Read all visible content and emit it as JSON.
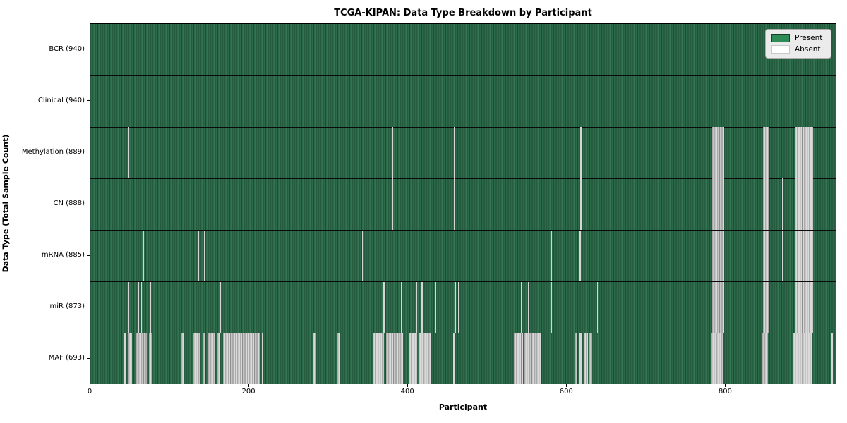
{
  "title": "TCGA-KIPAN: Data Type Breakdown by Participant",
  "axes": {
    "x_label": "Participant",
    "y_label": "Data Type (Total Sample Count)"
  },
  "legend": {
    "present_label": "Present",
    "absent_label": "Absent"
  },
  "colors": {
    "present": "#2e8b57",
    "present_dark": "#1d4d35",
    "present_light": "#3c7f5e",
    "absent": "#c6c6c6",
    "absent_light": "#ededed",
    "absent_dark": "#8d8d8d",
    "legend_bg": "#ebebeb",
    "frame": "#000000"
  },
  "chart_data": {
    "type": "heatmap",
    "title": "TCGA-KIPAN: Data Type Breakdown by Participant",
    "xlabel": "Participant",
    "ylabel": "Data Type (Total Sample Count)",
    "xlim": [
      0,
      940
    ],
    "x_ticks": [
      0,
      200,
      400,
      600,
      800
    ],
    "legend_entries": [
      "Present",
      "Absent"
    ],
    "value_encoding": {
      "present": "green",
      "absent": "white"
    },
    "rows": [
      {
        "label": "BCR (940)",
        "total_samples": 940,
        "absent_segments": [
          [
            325,
            326
          ]
        ]
      },
      {
        "label": "Clinical (940)",
        "total_samples": 940,
        "absent_segments": [
          [
            446,
            447
          ]
        ]
      },
      {
        "label": "Methylation (889)",
        "total_samples": 889,
        "absent_segments": [
          [
            48,
            49
          ],
          [
            331,
            332
          ],
          [
            380,
            381
          ],
          [
            458,
            459
          ],
          [
            617,
            618
          ],
          [
            783,
            798
          ],
          [
            847,
            854
          ],
          [
            887,
            910
          ]
        ]
      },
      {
        "label": "CN (888)",
        "total_samples": 888,
        "absent_segments": [
          [
            62,
            63
          ],
          [
            380,
            381
          ],
          [
            458,
            459
          ],
          [
            617,
            618
          ],
          [
            783,
            798
          ],
          [
            847,
            854
          ],
          [
            871,
            872
          ],
          [
            887,
            910
          ]
        ]
      },
      {
        "label": "mRNA (885)",
        "total_samples": 885,
        "absent_segments": [
          [
            66,
            67
          ],
          [
            136,
            137
          ],
          [
            143,
            144
          ],
          [
            342,
            343
          ],
          [
            452,
            453
          ],
          [
            580,
            581
          ],
          [
            616,
            617
          ],
          [
            783,
            798
          ],
          [
            847,
            854
          ],
          [
            871,
            872
          ],
          [
            887,
            910
          ]
        ]
      },
      {
        "label": "miR (873)",
        "total_samples": 873,
        "absent_segments": [
          [
            48,
            49
          ],
          [
            60,
            61
          ],
          [
            64,
            65
          ],
          [
            68,
            69
          ],
          [
            75,
            76
          ],
          [
            163,
            164
          ],
          [
            369,
            370
          ],
          [
            391,
            392
          ],
          [
            410,
            411
          ],
          [
            417,
            418
          ],
          [
            434,
            435
          ],
          [
            459,
            460
          ],
          [
            463,
            464
          ],
          [
            542,
            543
          ],
          [
            551,
            552
          ],
          [
            580,
            581
          ],
          [
            638,
            639
          ],
          [
            783,
            798
          ],
          [
            847,
            854
          ],
          [
            887,
            910
          ]
        ]
      },
      {
        "label": "MAF (693)",
        "total_samples": 693,
        "absent_segments": [
          [
            42,
            44
          ],
          [
            48,
            52
          ],
          [
            58,
            71
          ],
          [
            74,
            77
          ],
          [
            115,
            118
          ],
          [
            130,
            139
          ],
          [
            142,
            145
          ],
          [
            148,
            156
          ],
          [
            160,
            163
          ],
          [
            167,
            213
          ],
          [
            216,
            217
          ],
          [
            280,
            284
          ],
          [
            311,
            314
          ],
          [
            355,
            370
          ],
          [
            372,
            394
          ],
          [
            401,
            411
          ],
          [
            413,
            429
          ],
          [
            437,
            438
          ],
          [
            457,
            458
          ],
          [
            533,
            545
          ],
          [
            546,
            567
          ],
          [
            610,
            613
          ],
          [
            616,
            618
          ],
          [
            621,
            626
          ],
          [
            628,
            632
          ],
          [
            782,
            797
          ],
          [
            846,
            853
          ],
          [
            884,
            909
          ],
          [
            933,
            935
          ]
        ]
      }
    ]
  }
}
